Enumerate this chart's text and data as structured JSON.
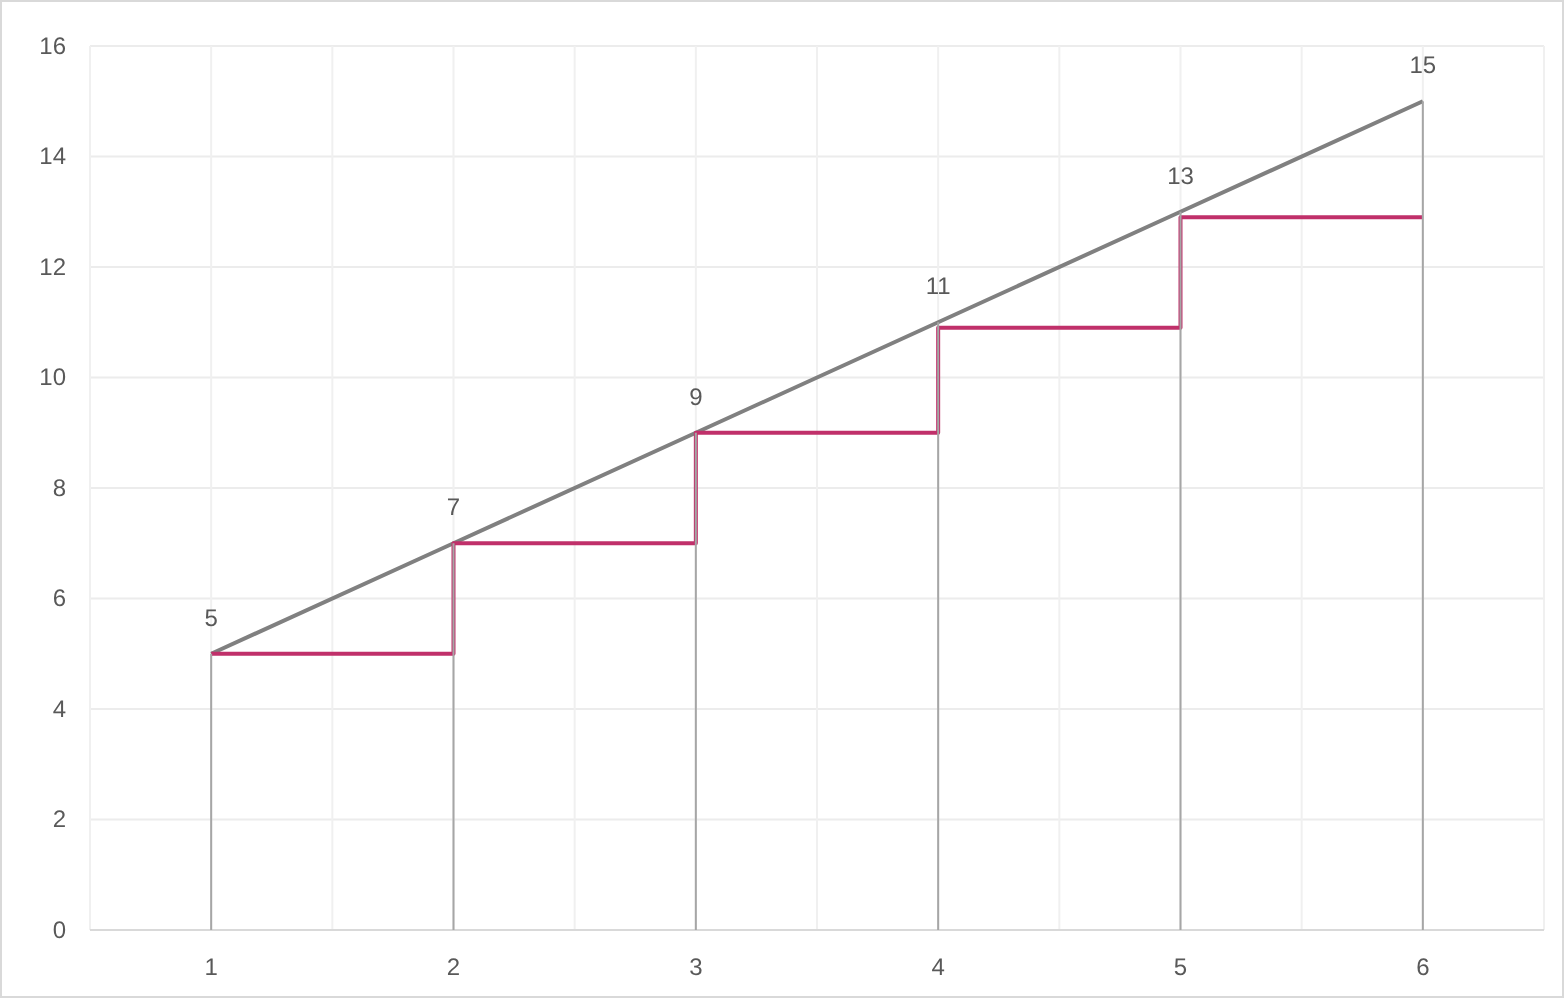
{
  "chart_data": {
    "type": "line",
    "x": [
      1,
      2,
      3,
      4,
      5,
      6
    ],
    "series": [
      {
        "type": "bar",
        "color": "#a6a6a6",
        "values": [
          5,
          7,
          9,
          11,
          13,
          15
        ]
      },
      {
        "color": "#808080",
        "values": [
          5,
          7,
          9,
          11,
          13,
          15
        ],
        "value_labels": [
          "5",
          "7",
          "9",
          "11",
          "13",
          "15"
        ]
      },
      {
        "type": "step",
        "color": "#c0306a",
        "values": [
          5,
          7,
          9,
          10.9,
          12.9,
          12.9
        ]
      }
    ],
    "xlim": [
      0.5,
      6.5
    ],
    "xticks": [
      {
        "value": 0.5,
        "label": null
      },
      1,
      {
        "value": 1.5,
        "label": null
      },
      2,
      {
        "value": 2.5,
        "label": null
      },
      3,
      {
        "value": 3.5,
        "label": null
      },
      4,
      {
        "value": 4.5,
        "label": null
      },
      5,
      {
        "value": 5.5,
        "label": null
      },
      6,
      {
        "value": 6.5,
        "label": null
      }
    ],
    "ylim": [
      0,
      16
    ],
    "yticks": [
      0,
      2,
      4,
      6,
      8,
      10,
      12,
      14,
      16
    ],
    "grid": true
  }
}
